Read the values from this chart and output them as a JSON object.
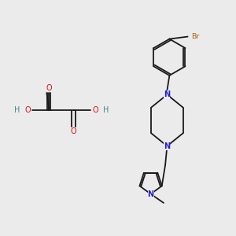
{
  "bg_color": "#ebebeb",
  "bond_color": "#1a1a1a",
  "n_color": "#2020cc",
  "o_color": "#dd1111",
  "br_color": "#b06010",
  "h_color": "#408888",
  "figsize": [
    3.0,
    3.0
  ],
  "dpi": 100,
  "xlim": [
    0,
    10
  ],
  "ylim": [
    0,
    10
  ]
}
